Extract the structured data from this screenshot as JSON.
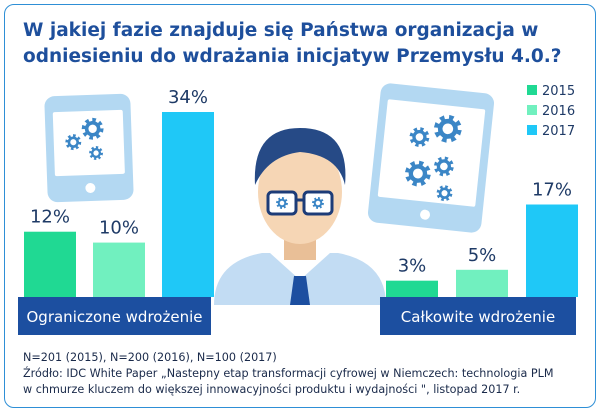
{
  "colors": {
    "series_2015": "#20d993",
    "series_2016": "#71f0bf",
    "series_2017": "#1fc8f7",
    "band": "#1c4fa0",
    "title": "#1e4f9c",
    "device_frame": "#b3d8f2",
    "device_screen": "#ffffff",
    "gear": "#3b86c6",
    "hair": "#264a86",
    "skin": "#f6d6b5",
    "shirt": "#c2dcf3",
    "tie": "#1c4fa0"
  },
  "title": {
    "line1": "W jakiej fazie znajduje się Państwa organizacja w",
    "line2": "odniesieniu do wdrażania inicjatyw Przemysłu 4.0.?"
  },
  "notes": {
    "sample": "N=201 (2015), N=200 (2016), N=100 (2017)",
    "source_line1": "Źródło: IDC White Paper „Nastepny etap transformacji cyfrowej w Niemczech: technologia PLM",
    "source_line2": "w chmurze kluczem do większej innowacyjności produktu i wydajności \", listopad 2017 r."
  },
  "icons": [
    "tablet-gears-icon",
    "tablet-gears-icon",
    "person-with-glasses-icon",
    "gear-icon"
  ],
  "chart_data": {
    "type": "bar",
    "categories": [
      "Ograniczone wdrożenie",
      "Całkowite wdrożenie"
    ],
    "series": [
      {
        "name": "2015",
        "values": [
          12,
          3
        ],
        "labels": [
          "12%",
          "3%"
        ]
      },
      {
        "name": "2016",
        "values": [
          10,
          5
        ],
        "labels": [
          "10%",
          "5%"
        ]
      },
      {
        "name": "2017",
        "values": [
          34,
          17
        ],
        "labels": [
          "34%",
          "17%"
        ]
      }
    ],
    "unit": "%",
    "ylim": [
      0,
      34
    ],
    "legend": "top-right",
    "grid": false
  }
}
